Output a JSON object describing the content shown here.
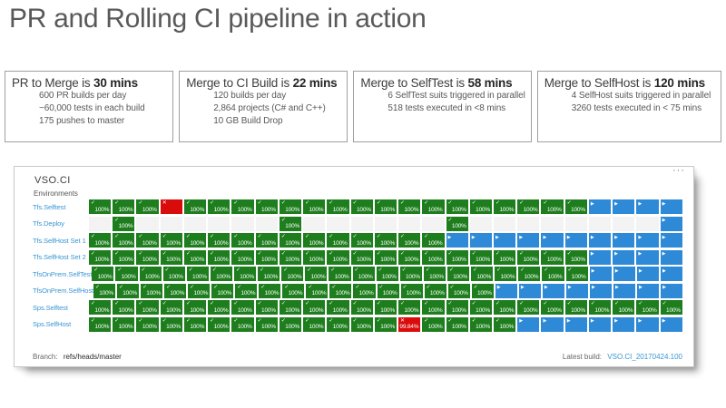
{
  "slide": {
    "title": "PR and Rolling CI pipeline in action"
  },
  "info_boxes": [
    {
      "heading_prefix": "PR to Merge is ",
      "heading_bold": "30 mins",
      "lines": [
        "600 PR builds per day",
        "~60,000 tests in each build",
        "175 pushes to master"
      ]
    },
    {
      "heading_prefix": "Merge to CI Build is ",
      "heading_bold": "22 mins",
      "lines": [
        "120 builds per day",
        "2,864 projects (C# and C++)",
        "10 GB Build Drop"
      ]
    },
    {
      "heading_prefix": "Merge to SelfTest is ",
      "heading_bold": "58 mins",
      "lines": [
        "6 SelfTest suits triggered in parallel",
        "518 tests executed in <8 mins"
      ]
    },
    {
      "heading_prefix": "Merge to SelfHost is ",
      "heading_bold": "120 mins",
      "lines": [
        "4 SelfHost suits triggered in parallel",
        "3260 tests executed in < 75 mins"
      ]
    }
  ],
  "dashboard": {
    "title": "VSO.CI",
    "more_icon": "···",
    "environments_label": "Environments",
    "columns": 25,
    "icons": {
      "check": "✓",
      "x": "✕",
      "play": "▶"
    },
    "cell_types": {
      "g": {
        "name": "passed",
        "color": "#1e7e1e",
        "icon": "check",
        "label": "100%"
      },
      "r": {
        "name": "failed",
        "color": "#da0b0b",
        "icon": "x",
        "label": ""
      },
      "b": {
        "name": "in-progress",
        "color": "#2e8ad6",
        "icon": "play",
        "label": ""
      },
      "e": {
        "name": "empty",
        "color": "#f3f3f3",
        "icon": "",
        "label": ""
      }
    },
    "rows": [
      {
        "label": "Tfs.Selftest",
        "cells": [
          "g",
          "g",
          "g",
          "r",
          "g",
          "g",
          "g",
          "g",
          "g",
          "g",
          "g",
          "g",
          "g",
          "g",
          "g",
          "g",
          "g",
          "g",
          "g",
          "g",
          "g",
          "b",
          "b",
          "b",
          "b"
        ]
      },
      {
        "label": "Tfs.Deploy",
        "cells": [
          "e",
          "g",
          "e",
          "e",
          "e",
          "e",
          "e",
          "e",
          "g",
          "e",
          "e",
          "e",
          "e",
          "e",
          "e",
          "g",
          "e",
          "e",
          "e",
          "e",
          "e",
          "e",
          "e",
          "e",
          "b"
        ]
      },
      {
        "label": "Tfs.SelfHost Set 1",
        "cells": [
          "g",
          "g",
          "g",
          "g",
          "g",
          "g",
          "g",
          "g",
          "g",
          "g",
          "g",
          "g",
          "g",
          "g",
          "g",
          "b",
          "b",
          "b",
          "b",
          "b",
          "b",
          "b",
          "b",
          "b",
          "b"
        ]
      },
      {
        "label": "Tfs.SelfHost Set 2",
        "cells": [
          "g",
          "g",
          "g",
          "g",
          "g",
          "g",
          "g",
          "g",
          "g",
          "g",
          "g",
          "g",
          "g",
          "g",
          "g",
          "g",
          "g",
          "g",
          "g",
          "g",
          "g",
          "b",
          "b",
          "b",
          "b"
        ]
      },
      {
        "label": "TfsOnPrem.SelfTest",
        "cells": [
          "g",
          "g",
          "g",
          "g",
          "g",
          "g",
          "g",
          "g",
          "g",
          "g",
          "g",
          "g",
          "g",
          "g",
          "g",
          "g",
          "g",
          "g",
          "g",
          "g",
          "g",
          "b",
          "b",
          "b",
          "b"
        ]
      },
      {
        "label": "TfsOnPrem.SelfHost",
        "cells": [
          "g",
          "g",
          "g",
          "g",
          "g",
          "g",
          "g",
          "g",
          "g",
          "g",
          "g",
          "g",
          "g",
          "g",
          "g",
          "g",
          "g",
          "b",
          "b",
          "b",
          "b",
          "b",
          "b",
          "b",
          "b"
        ]
      },
      {
        "label": "Sps.Selftest",
        "cells": [
          "g",
          "g",
          "g",
          "g",
          "g",
          "g",
          "g",
          "g",
          "g",
          "g",
          "g",
          "g",
          "g",
          "g",
          "g",
          "g",
          "g",
          "g",
          "g",
          "g",
          "g",
          "g",
          "g",
          "g",
          "g"
        ]
      },
      {
        "label": "Sps.SelfHost",
        "cells": [
          "g",
          "g",
          "g",
          "g",
          "g",
          "g",
          "g",
          "g",
          "g",
          "g",
          "g",
          "g",
          "g",
          "r:99.84%",
          "g",
          "g",
          "g",
          "g",
          "b",
          "b",
          "b",
          "b",
          "b",
          "b",
          "b"
        ]
      }
    ],
    "footer": {
      "branch_label": "Branch:",
      "branch_value": "refs/heads/master",
      "latest_build_label": "Latest build:",
      "latest_build_value": "VSO.CI_20170424.100"
    }
  }
}
